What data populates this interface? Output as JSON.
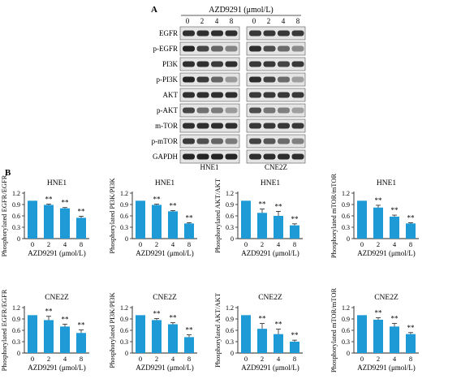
{
  "panel_labels": {
    "a": "A",
    "b": "B"
  },
  "blot": {
    "treatment_label": "AZD9291 (μmol/L)",
    "lane_labels": [
      "0",
      "2",
      "4",
      "8"
    ],
    "proteins": [
      "EGFR",
      "p-EGFR",
      "PI3K",
      "p-PI3K",
      "AKT",
      "p-AKT",
      "m-TOR",
      "p-mTOR",
      "GAPDH"
    ],
    "cell_lines": [
      "HNE1",
      "CNE2Z"
    ]
  },
  "chart_data": [
    {
      "type": "bar",
      "title": "HNE1",
      "ylabel": "Phosphorylated EGFR/EGFR",
      "xlabel": "AZD9291 (μmol/L)",
      "categories": [
        "0",
        "2",
        "4",
        "8"
      ],
      "values": [
        1.0,
        0.89,
        0.8,
        0.55
      ],
      "errors": [
        0.0,
        0.02,
        0.02,
        0.04
      ],
      "significance": [
        "",
        "**",
        "**",
        "**"
      ],
      "ylim": [
        0,
        1.2
      ],
      "yticks": [
        "0",
        "0.3",
        "0.6",
        "0.9",
        "1.2"
      ],
      "color": "#1e9ad6"
    },
    {
      "type": "bar",
      "title": "HNE1",
      "ylabel": "Phosphorylated PI3K/PI3K",
      "xlabel": "AZD9291 (μmol/L)",
      "categories": [
        "0",
        "2",
        "4",
        "8"
      ],
      "values": [
        1.0,
        0.89,
        0.72,
        0.4
      ],
      "errors": [
        0.0,
        0.02,
        0.02,
        0.02
      ],
      "significance": [
        "",
        "**",
        "**",
        "**"
      ],
      "ylim": [
        0,
        1.2
      ],
      "yticks": [
        "0",
        "0.3",
        "0.6",
        "0.9",
        "1.2"
      ],
      "color": "#1e9ad6"
    },
    {
      "type": "bar",
      "title": "HNE1",
      "ylabel": "Phosphorylated AKT/AKT",
      "xlabel": "AZD9291 (μmol/L)",
      "categories": [
        "0",
        "2",
        "4",
        "8"
      ],
      "values": [
        1.0,
        0.68,
        0.6,
        0.35
      ],
      "errors": [
        0.0,
        0.1,
        0.12,
        0.04
      ],
      "significance": [
        "",
        "**",
        "**",
        "**"
      ],
      "ylim": [
        0,
        1.2
      ],
      "yticks": [
        "0",
        "0.3",
        "0.6",
        "0.9",
        "1.2"
      ],
      "color": "#1e9ad6"
    },
    {
      "type": "bar",
      "title": "HNE1",
      "ylabel": "Phosphorylated mTOR/mTOR",
      "xlabel": "AZD9291 (μmol/L)",
      "categories": [
        "0",
        "2",
        "4",
        "8"
      ],
      "values": [
        1.0,
        0.82,
        0.58,
        0.4
      ],
      "errors": [
        0.0,
        0.06,
        0.04,
        0.02
      ],
      "significance": [
        "",
        "**",
        "**",
        "**"
      ],
      "ylim": [
        0,
        1.2
      ],
      "yticks": [
        "0",
        "0.3",
        "0.6",
        "0.9",
        "1.2"
      ],
      "color": "#1e9ad6"
    },
    {
      "type": "bar",
      "title": "CNE2Z",
      "ylabel": "Phosphorylated EGFR/EGFR",
      "xlabel": "AZD9291 (μmol/L)",
      "categories": [
        "0",
        "2",
        "4",
        "8"
      ],
      "values": [
        1.0,
        0.87,
        0.7,
        0.53
      ],
      "errors": [
        0.0,
        0.1,
        0.06,
        0.08
      ],
      "significance": [
        "",
        "**",
        "**",
        "**"
      ],
      "ylim": [
        0,
        1.2
      ],
      "yticks": [
        "0",
        "0.3",
        "0.6",
        "0.9",
        "1.2"
      ],
      "color": "#1e9ad6"
    },
    {
      "type": "bar",
      "title": "CNE2Z",
      "ylabel": "Phosphorylated PI3K/PI3K",
      "xlabel": "AZD9291 (μmol/L)",
      "categories": [
        "0",
        "2",
        "4",
        "8"
      ],
      "values": [
        1.0,
        0.87,
        0.76,
        0.42
      ],
      "errors": [
        0.0,
        0.04,
        0.04,
        0.06
      ],
      "significance": [
        "",
        "**",
        "**",
        "**"
      ],
      "ylim": [
        0,
        1.2
      ],
      "yticks": [
        "0",
        "0.3",
        "0.6",
        "0.9",
        "1.2"
      ],
      "color": "#1e9ad6"
    },
    {
      "type": "bar",
      "title": "CNE2Z",
      "ylabel": "Phosphorylated AKT/AKT",
      "xlabel": "AZD9291 (μmol/L)",
      "categories": [
        "0",
        "2",
        "4",
        "8"
      ],
      "values": [
        1.0,
        0.64,
        0.5,
        0.3
      ],
      "errors": [
        0.0,
        0.14,
        0.13,
        0.04
      ],
      "significance": [
        "",
        "**",
        "**",
        "**"
      ],
      "ylim": [
        0,
        1.2
      ],
      "yticks": [
        "0",
        "0.3",
        "0.6",
        "0.9",
        "1.2"
      ],
      "color": "#1e9ad6"
    },
    {
      "type": "bar",
      "title": "CNE2Z",
      "ylabel": "Phosphorylated mTOR/mTOR",
      "xlabel": "AZD9291 (μmol/L)",
      "categories": [
        "0",
        "2",
        "4",
        "8"
      ],
      "values": [
        1.0,
        0.88,
        0.7,
        0.5
      ],
      "errors": [
        0.0,
        0.05,
        0.08,
        0.04
      ],
      "significance": [
        "",
        "**",
        "**",
        "**"
      ],
      "ylim": [
        0,
        1.2
      ],
      "yticks": [
        "0",
        "0.3",
        "0.6",
        "0.9",
        "1.2"
      ],
      "color": "#1e9ad6"
    }
  ]
}
